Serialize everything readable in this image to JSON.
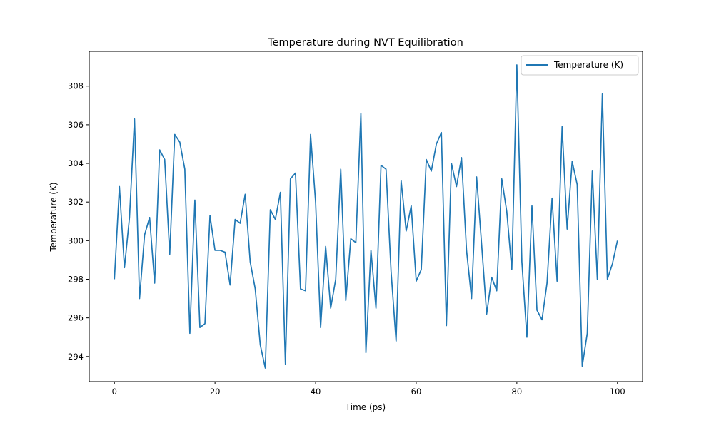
{
  "chart_data": {
    "type": "line",
    "title": "Temperature during NVT Equilibration",
    "xlabel": "Time (ps)",
    "ylabel": "Temperature (K)",
    "xlim": [
      -5,
      105
    ],
    "ylim": [
      292.7,
      309.8
    ],
    "xticks": [
      0,
      20,
      40,
      60,
      80,
      100
    ],
    "yticks": [
      294,
      296,
      298,
      300,
      302,
      304,
      306,
      308
    ],
    "grid": false,
    "legend_position": "upper right",
    "series": [
      {
        "name": "Temperature (K)",
        "color": "#1f77b4",
        "x": [
          0,
          1,
          2,
          3,
          4,
          5,
          6,
          7,
          8,
          9,
          10,
          11,
          12,
          13,
          14,
          15,
          16,
          17,
          18,
          19,
          20,
          21,
          22,
          23,
          24,
          25,
          26,
          27,
          28,
          29,
          30,
          31,
          32,
          33,
          34,
          35,
          36,
          37,
          38,
          39,
          40,
          41,
          42,
          43,
          44,
          45,
          46,
          47,
          48,
          49,
          50,
          51,
          52,
          53,
          54,
          55,
          56,
          57,
          58,
          59,
          60,
          61,
          62,
          63,
          64,
          65,
          66,
          67,
          68,
          69,
          70,
          71,
          72,
          73,
          74,
          75,
          76,
          77,
          78,
          79,
          80,
          81,
          82,
          83,
          84,
          85,
          86,
          87,
          88,
          89,
          90,
          91,
          92,
          93,
          94,
          95,
          96,
          97,
          98,
          99,
          100
        ],
        "values": [
          298.0,
          302.8,
          298.6,
          301.2,
          306.3,
          297.0,
          300.3,
          301.2,
          297.8,
          304.7,
          304.2,
          299.3,
          305.5,
          305.1,
          303.7,
          295.2,
          302.1,
          295.5,
          295.7,
          301.3,
          299.5,
          299.5,
          299.4,
          297.7,
          301.1,
          300.9,
          302.4,
          298.9,
          297.5,
          294.6,
          293.4,
          301.6,
          301.1,
          302.5,
          293.6,
          303.2,
          303.5,
          297.5,
          297.4,
          305.5,
          302.0,
          295.5,
          299.7,
          296.5,
          298.0,
          303.7,
          296.9,
          300.1,
          299.9,
          306.6,
          294.2,
          299.5,
          296.5,
          303.9,
          303.7,
          298.4,
          294.8,
          303.1,
          300.5,
          301.8,
          297.9,
          298.5,
          304.2,
          303.6,
          305.0,
          305.6,
          295.6,
          304.0,
          302.8,
          304.3,
          299.5,
          297.0,
          303.3,
          299.8,
          296.2,
          298.1,
          297.4,
          303.2,
          301.5,
          298.5,
          309.1,
          298.9,
          295.0,
          301.8,
          296.4,
          295.9,
          297.8,
          302.2,
          297.9,
          305.9,
          300.6,
          304.1,
          302.9,
          293.5,
          295.2,
          303.6,
          298.0,
          307.6,
          298.0,
          298.8,
          300.0
        ]
      }
    ]
  }
}
